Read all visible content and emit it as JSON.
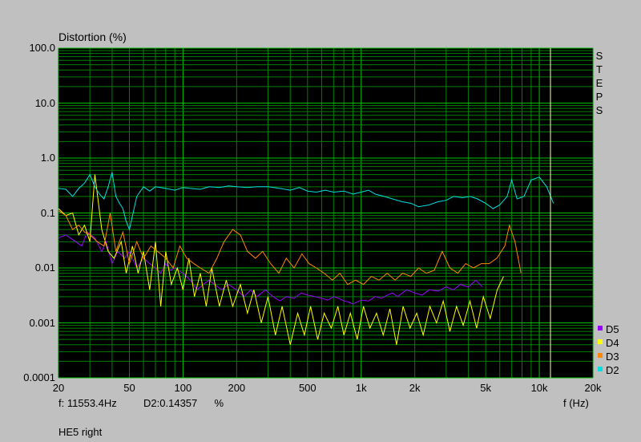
{
  "window": {
    "caption": "HE5 right"
  },
  "readout": {
    "freq_label": "f:",
    "freq_value": "11553.4Hz",
    "dist_label": "D2:",
    "dist_value": "0.14357",
    "dist_unit": "%"
  },
  "side_label": "STEPS",
  "colors": {
    "background": "#c0c0c0",
    "plot_bg": "#000000",
    "grid": "#008000",
    "cursor": "#ffffc0"
  },
  "chart_data": {
    "type": "line",
    "title": "",
    "ylabel": "Distortion (%)",
    "xlabel": "f (Hz)",
    "x_scale": "log",
    "y_scale": "log",
    "xlim": [
      20,
      20000
    ],
    "ylim": [
      0.0001,
      100
    ],
    "grid": true,
    "legend_position": "bottom-right",
    "x_ticks": [
      {
        "value": 20,
        "label": "20"
      },
      {
        "value": 50,
        "label": "50"
      },
      {
        "value": 100,
        "label": "100"
      },
      {
        "value": 200,
        "label": "200"
      },
      {
        "value": 500,
        "label": "500"
      },
      {
        "value": 1000,
        "label": "1k"
      },
      {
        "value": 2000,
        "label": "2k"
      },
      {
        "value": 5000,
        "label": "5k"
      },
      {
        "value": 10000,
        "label": "10k"
      },
      {
        "value": 20000,
        "label": "20k"
      }
    ],
    "y_ticks": [
      {
        "value": 100,
        "label": "100.0"
      },
      {
        "value": 10,
        "label": "10.0"
      },
      {
        "value": 1,
        "label": "1.0"
      },
      {
        "value": 0.1,
        "label": "0.1"
      },
      {
        "value": 0.01,
        "label": "0.01"
      },
      {
        "value": 0.001,
        "label": "0.001"
      },
      {
        "value": 0.0001,
        "label": "0.0001"
      }
    ],
    "cursor_x": 11553.4,
    "series": [
      {
        "name": "D5",
        "color": "#9900ff",
        "x": [
          20,
          22,
          25,
          27,
          29,
          32,
          35,
          37,
          40,
          43,
          47,
          50,
          55,
          60,
          65,
          70,
          75,
          80,
          85,
          90,
          100,
          110,
          120,
          130,
          140,
          150,
          165,
          180,
          200,
          220,
          240,
          260,
          290,
          320,
          350,
          380,
          420,
          460,
          500,
          550,
          600,
          650,
          700,
          750,
          800,
          850,
          900,
          1000,
          1100,
          1200,
          1300,
          1400,
          1500,
          1600,
          1800,
          2000,
          2200,
          2400,
          2700,
          3000,
          3300,
          3600,
          4000,
          4400,
          4800
        ],
        "y": [
          0.035,
          0.04,
          0.03,
          0.025,
          0.045,
          0.035,
          0.02,
          0.03,
          0.012,
          0.02,
          0.015,
          0.02,
          0.01,
          0.015,
          0.012,
          0.01,
          0.008,
          0.012,
          0.009,
          0.01,
          0.008,
          0.006,
          0.004,
          0.005,
          0.006,
          0.005,
          0.004,
          0.005,
          0.004,
          0.003,
          0.004,
          0.003,
          0.004,
          0.003,
          0.0025,
          0.003,
          0.0028,
          0.0035,
          0.0032,
          0.003,
          0.0028,
          0.0026,
          0.003,
          0.0028,
          0.0025,
          0.0024,
          0.0022,
          0.0026,
          0.0025,
          0.003,
          0.0028,
          0.0032,
          0.0035,
          0.003,
          0.004,
          0.0035,
          0.0032,
          0.004,
          0.0038,
          0.0045,
          0.004,
          0.005,
          0.0045,
          0.006,
          0.0045
        ]
      },
      {
        "name": "D4",
        "color": "#ffff00",
        "x": [
          20,
          22,
          24,
          26,
          28,
          30,
          32,
          35,
          38,
          41,
          45,
          48,
          52,
          56,
          60,
          65,
          70,
          75,
          80,
          86,
          93,
          100,
          108,
          116,
          125,
          135,
          145,
          160,
          175,
          190,
          210,
          230,
          250,
          275,
          300,
          330,
          360,
          400,
          440,
          480,
          520,
          570,
          620,
          680,
          740,
          800,
          870,
          950,
          1030,
          1120,
          1220,
          1330,
          1450,
          1580,
          1720,
          1880,
          2050,
          2230,
          2430,
          2650,
          2890,
          3150,
          3430,
          3740,
          4080,
          4450,
          4850,
          5300,
          5800,
          6300
        ],
        "y": [
          0.12,
          0.09,
          0.1,
          0.04,
          0.06,
          0.03,
          0.5,
          0.05,
          0.02,
          0.015,
          0.03,
          0.008,
          0.025,
          0.008,
          0.02,
          0.004,
          0.03,
          0.002,
          0.02,
          0.005,
          0.01,
          0.004,
          0.015,
          0.003,
          0.008,
          0.002,
          0.01,
          0.002,
          0.006,
          0.002,
          0.005,
          0.0015,
          0.004,
          0.001,
          0.003,
          0.0006,
          0.002,
          0.0004,
          0.0015,
          0.0006,
          0.002,
          0.0005,
          0.0015,
          0.0008,
          0.002,
          0.0006,
          0.0015,
          0.0005,
          0.002,
          0.0008,
          0.0015,
          0.0006,
          0.0018,
          0.0004,
          0.002,
          0.0008,
          0.0015,
          0.0006,
          0.002,
          0.001,
          0.0025,
          0.0007,
          0.002,
          0.0009,
          0.0025,
          0.0008,
          0.003,
          0.0012,
          0.004,
          0.007
        ]
      },
      {
        "name": "D3",
        "color": "#ff8800",
        "x": [
          20,
          22,
          24,
          26,
          28,
          30,
          33,
          36,
          39,
          42,
          46,
          50,
          55,
          60,
          66,
          72,
          80,
          88,
          96,
          105,
          115,
          125,
          140,
          155,
          170,
          190,
          210,
          230,
          255,
          280,
          310,
          345,
          380,
          420,
          465,
          510,
          560,
          620,
          690,
          760,
          840,
          930,
          1030,
          1140,
          1260,
          1400,
          1550,
          1710,
          1900,
          2100,
          2320,
          2570,
          2850,
          3150,
          3490,
          3860,
          4270,
          4730,
          5230,
          5780,
          6400,
          6800,
          7300,
          7900
        ],
        "y": [
          0.11,
          0.09,
          0.05,
          0.06,
          0.045,
          0.04,
          0.03,
          0.025,
          0.1,
          0.02,
          0.045,
          0.012,
          0.03,
          0.015,
          0.025,
          0.02,
          0.015,
          0.01,
          0.025,
          0.015,
          0.012,
          0.01,
          0.008,
          0.015,
          0.03,
          0.05,
          0.04,
          0.02,
          0.015,
          0.02,
          0.012,
          0.008,
          0.015,
          0.01,
          0.018,
          0.012,
          0.01,
          0.008,
          0.006,
          0.008,
          0.005,
          0.006,
          0.005,
          0.007,
          0.006,
          0.008,
          0.006,
          0.008,
          0.007,
          0.01,
          0.008,
          0.009,
          0.02,
          0.01,
          0.008,
          0.012,
          0.01,
          0.012,
          0.012,
          0.015,
          0.025,
          0.06,
          0.03,
          0.008
        ]
      },
      {
        "name": "D2",
        "color": "#00e0e0",
        "x": [
          20,
          22,
          24,
          26,
          28,
          30,
          32,
          34,
          36,
          38,
          40,
          42,
          44,
          46,
          48,
          50,
          55,
          60,
          65,
          70,
          80,
          90,
          100,
          110,
          125,
          140,
          160,
          180,
          200,
          230,
          260,
          300,
          350,
          400,
          450,
          500,
          560,
          630,
          700,
          800,
          900,
          1000,
          1100,
          1200,
          1350,
          1500,
          1700,
          1900,
          2100,
          2400,
          2700,
          3000,
          3300,
          3700,
          4100,
          4500,
          5000,
          5500,
          6000,
          6600,
          7000,
          7500,
          8200,
          9000,
          10000,
          11000,
          12000
        ],
        "y": [
          0.28,
          0.27,
          0.2,
          0.28,
          0.35,
          0.5,
          0.3,
          0.22,
          0.18,
          0.3,
          0.55,
          0.2,
          0.15,
          0.12,
          0.07,
          0.05,
          0.2,
          0.3,
          0.25,
          0.3,
          0.28,
          0.26,
          0.29,
          0.28,
          0.27,
          0.3,
          0.29,
          0.31,
          0.3,
          0.29,
          0.3,
          0.3,
          0.28,
          0.26,
          0.29,
          0.25,
          0.24,
          0.26,
          0.24,
          0.25,
          0.22,
          0.24,
          0.26,
          0.22,
          0.2,
          0.18,
          0.16,
          0.15,
          0.13,
          0.14,
          0.16,
          0.17,
          0.2,
          0.19,
          0.2,
          0.18,
          0.15,
          0.12,
          0.14,
          0.2,
          0.4,
          0.18,
          0.2,
          0.4,
          0.45,
          0.3,
          0.15
        ]
      }
    ]
  }
}
